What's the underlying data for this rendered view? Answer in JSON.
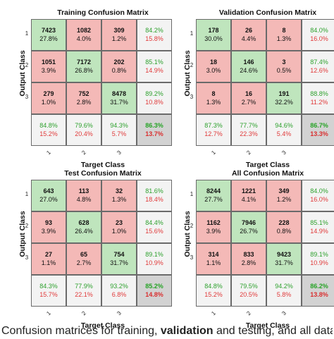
{
  "chart_data": [
    {
      "type": "heatmap",
      "title": "Training Confusion Matrix",
      "ylabel": "Output Class",
      "xlabel": "Target Class",
      "row_ticks": [
        "1",
        "2",
        "3"
      ],
      "col_ticks": [
        "1",
        "2",
        "3"
      ],
      "cells": [
        [
          {
            "count": "7423",
            "pct": "27.8%"
          },
          {
            "count": "1082",
            "pct": "4.0%"
          },
          {
            "count": "309",
            "pct": "1.2%"
          }
        ],
        [
          {
            "count": "1051",
            "pct": "3.9%"
          },
          {
            "count": "7172",
            "pct": "26.8%"
          },
          {
            "count": "202",
            "pct": "0.8%"
          }
        ],
        [
          {
            "count": "279",
            "pct": "1.0%"
          },
          {
            "count": "752",
            "pct": "2.8%"
          },
          {
            "count": "8478",
            "pct": "31.7%"
          }
        ]
      ],
      "row_stats": [
        [
          "84.2%",
          "15.8%"
        ],
        [
          "85.1%",
          "14.9%"
        ],
        [
          "89.2%",
          "10.8%"
        ]
      ],
      "col_stats": [
        [
          "84.8%",
          "15.2%"
        ],
        [
          "79.6%",
          "20.4%"
        ],
        [
          "94.3%",
          "5.7%"
        ]
      ],
      "total": [
        "86.3%",
        "13.7%"
      ]
    },
    {
      "type": "heatmap",
      "title": "Validation Confusion Matrix",
      "ylabel": "Output Class",
      "xlabel": "Target Class",
      "row_ticks": [
        "1",
        "2",
        "3"
      ],
      "col_ticks": [
        "1",
        "2",
        "3"
      ],
      "cells": [
        [
          {
            "count": "178",
            "pct": "30.0%"
          },
          {
            "count": "26",
            "pct": "4.4%"
          },
          {
            "count": "8",
            "pct": "1.3%"
          }
        ],
        [
          {
            "count": "18",
            "pct": "3.0%"
          },
          {
            "count": "146",
            "pct": "24.6%"
          },
          {
            "count": "3",
            "pct": "0.5%"
          }
        ],
        [
          {
            "count": "8",
            "pct": "1.3%"
          },
          {
            "count": "16",
            "pct": "2.7%"
          },
          {
            "count": "191",
            "pct": "32.2%"
          }
        ]
      ],
      "row_stats": [
        [
          "84.0%",
          "16.0%"
        ],
        [
          "87.4%",
          "12.6%"
        ],
        [
          "88.8%",
          "11.2%"
        ]
      ],
      "col_stats": [
        [
          "87.3%",
          "12.7%"
        ],
        [
          "77.7%",
          "22.3%"
        ],
        [
          "94.6%",
          "5.4%"
        ]
      ],
      "total": [
        "86.7%",
        "13.3%"
      ]
    },
    {
      "type": "heatmap",
      "title": "Test Confusion Matrix",
      "ylabel": "Output Class",
      "xlabel": "Target Class",
      "row_ticks": [
        "1",
        "2",
        "3"
      ],
      "col_ticks": [
        "1",
        "2",
        "3"
      ],
      "cells": [
        [
          {
            "count": "643",
            "pct": "27.0%"
          },
          {
            "count": "113",
            "pct": "4.8%"
          },
          {
            "count": "32",
            "pct": "1.3%"
          }
        ],
        [
          {
            "count": "93",
            "pct": "3.9%"
          },
          {
            "count": "628",
            "pct": "26.4%"
          },
          {
            "count": "23",
            "pct": "1.0%"
          }
        ],
        [
          {
            "count": "27",
            "pct": "1.1%"
          },
          {
            "count": "65",
            "pct": "2.7%"
          },
          {
            "count": "754",
            "pct": "31.7%"
          }
        ]
      ],
      "row_stats": [
        [
          "81.6%",
          "18.4%"
        ],
        [
          "84.4%",
          "15.6%"
        ],
        [
          "89.1%",
          "10.9%"
        ]
      ],
      "col_stats": [
        [
          "84.3%",
          "15.7%"
        ],
        [
          "77.9%",
          "22.1%"
        ],
        [
          "93.2%",
          "6.8%"
        ]
      ],
      "total": [
        "85.2%",
        "14.8%"
      ]
    },
    {
      "type": "heatmap",
      "title": "All Confusion Matrix",
      "ylabel": "Output Class",
      "xlabel": "Target Class",
      "row_ticks": [
        "1",
        "2",
        "3"
      ],
      "col_ticks": [
        "1",
        "2",
        "3"
      ],
      "cells": [
        [
          {
            "count": "8244",
            "pct": "27.7%"
          },
          {
            "count": "1221",
            "pct": "4.1%"
          },
          {
            "count": "349",
            "pct": "1.2%"
          }
        ],
        [
          {
            "count": "1162",
            "pct": "3.9%"
          },
          {
            "count": "7946",
            "pct": "26.7%"
          },
          {
            "count": "228",
            "pct": "0.8%"
          }
        ],
        [
          {
            "count": "314",
            "pct": "1.1%"
          },
          {
            "count": "833",
            "pct": "2.8%"
          },
          {
            "count": "9423",
            "pct": "31.7%"
          }
        ]
      ],
      "row_stats": [
        [
          "84.0%",
          "16.0%"
        ],
        [
          "85.1%",
          "14.9%"
        ],
        [
          "89.1%",
          "10.9%"
        ]
      ],
      "col_stats": [
        [
          "84.8%",
          "15.2%"
        ],
        [
          "79.5%",
          "20.5%"
        ],
        [
          "94.2%",
          "5.8%"
        ]
      ],
      "total": [
        "86.2%",
        "13.8%"
      ]
    }
  ],
  "colors": {
    "correct_cell": "#bfe5bd",
    "incorrect_cell": "#f4b9b7",
    "stat_cell": "#f3f3f3",
    "total_cell": "#d2d2d2",
    "good_text": "#2ea12e",
    "bad_text": "#e03a3a"
  },
  "caption": {
    "part1": "Confusion matrices for training, ",
    "bold": "validation",
    "part2": " and testing, and all data"
  }
}
